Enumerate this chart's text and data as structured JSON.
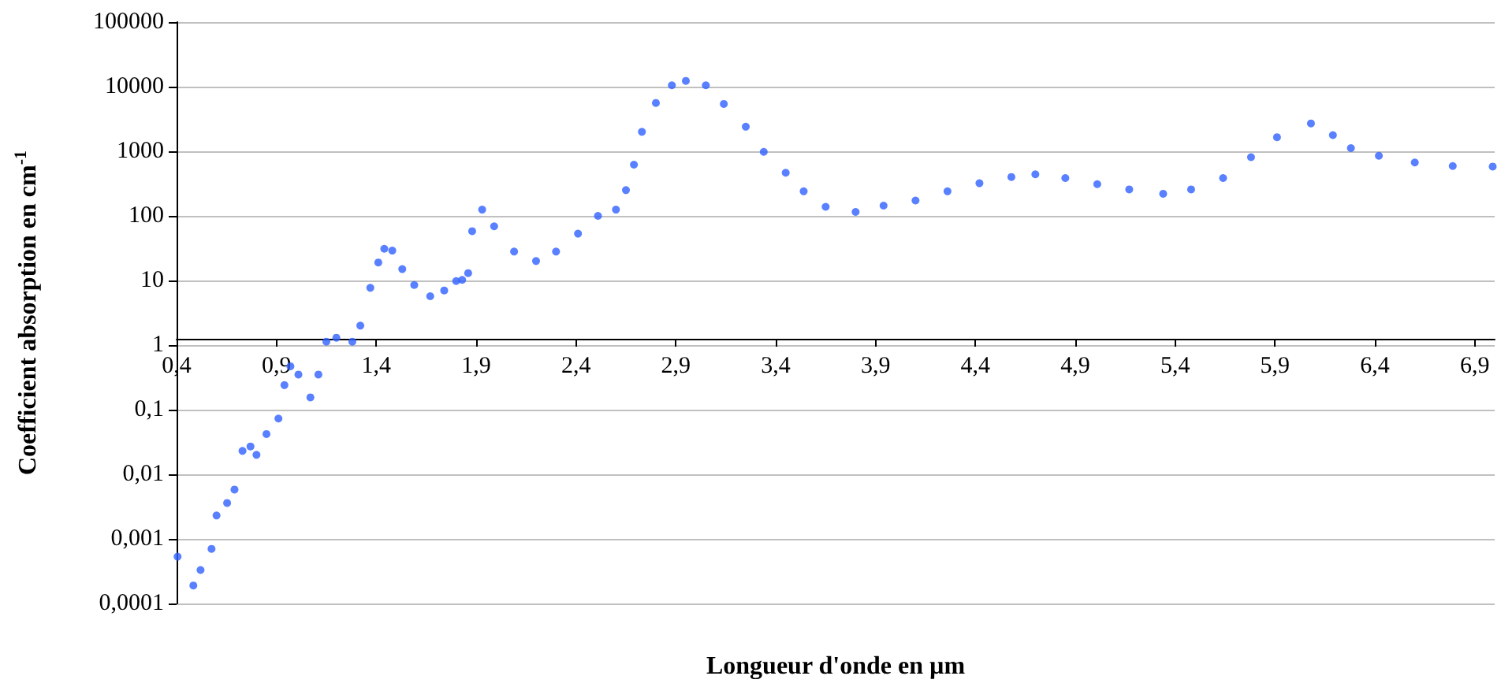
{
  "chart_data": {
    "type": "scatter",
    "xlabel": "Longueur d'onde en µm",
    "ylabel": "Coefficient absorption en cm$^{-1}$",
    "log": "y",
    "grid": "y",
    "marker": "circle",
    "xlim": [
      0.4,
      7.0
    ],
    "ylim": [
      0.0001,
      100000
    ],
    "xticks": [
      {
        "value": 0.4,
        "label": "0,4"
      },
      {
        "value": 0.9,
        "label": "0,9"
      },
      {
        "value": 1.4,
        "label": "1,4"
      },
      {
        "value": 1.9,
        "label": "1,9"
      },
      {
        "value": 2.4,
        "label": "2,4"
      },
      {
        "value": 2.9,
        "label": "2,9"
      },
      {
        "value": 3.4,
        "label": "3,4"
      },
      {
        "value": 3.9,
        "label": "3,9"
      },
      {
        "value": 4.4,
        "label": "4,4"
      },
      {
        "value": 4.9,
        "label": "4,9"
      },
      {
        "value": 5.4,
        "label": "5,4"
      },
      {
        "value": 5.9,
        "label": "5,9"
      },
      {
        "value": 6.4,
        "label": "6,4"
      },
      {
        "value": 6.9,
        "label": "6,9"
      }
    ],
    "yticks": [
      {
        "value": 0.0001,
        "label": "0,0001"
      },
      {
        "value": 0.001,
        "label": "0,001"
      },
      {
        "value": 0.01,
        "label": "0,01"
      },
      {
        "value": 0.1,
        "label": "0,1"
      },
      1,
      10,
      100,
      1000,
      10000,
      100000
    ],
    "series": [
      {
        "color": "#3060ff",
        "x": [
          0.405,
          0.484,
          0.52,
          0.575,
          0.6,
          0.653,
          0.69,
          0.73,
          0.77,
          0.8,
          0.85,
          0.91,
          0.94,
          0.97,
          1.01,
          1.07,
          1.11,
          1.15,
          1.2,
          1.28,
          1.32,
          1.37,
          1.41,
          1.44,
          1.48,
          1.53,
          1.59,
          1.67,
          1.74,
          1.8,
          1.83,
          1.86,
          1.88,
          1.93,
          1.99,
          2.09,
          2.2,
          2.3,
          2.41,
          2.51,
          2.6,
          2.65,
          2.69,
          2.73,
          2.8,
          2.88,
          2.95,
          3.05,
          3.14,
          3.25,
          3.34,
          3.45,
          3.54,
          3.65,
          3.8,
          3.94,
          4.1,
          4.26,
          4.42,
          4.58,
          4.7,
          4.85,
          5.01,
          5.17,
          5.34,
          5.48,
          5.64,
          5.78,
          5.91,
          6.08,
          6.19,
          6.28,
          6.42,
          6.6,
          6.79,
          6.99
        ],
        "values": [
          0.00053,
          0.00019,
          0.00033,
          0.0007,
          0.0023,
          0.0036,
          0.0058,
          0.023,
          0.027,
          0.02,
          0.042,
          0.073,
          0.24,
          0.47,
          0.35,
          0.155,
          0.35,
          1.13,
          1.3,
          1.13,
          2,
          7.7,
          19,
          31,
          29,
          15,
          8.5,
          5.7,
          7,
          9.8,
          10.2,
          13,
          58,
          125,
          69,
          28,
          20,
          28,
          53,
          100,
          125,
          250,
          620,
          2000,
          5600,
          10500,
          12300,
          10500,
          5400,
          2400,
          980,
          465,
          240,
          138,
          115,
          144,
          173,
          240,
          320,
          400,
          440,
          385,
          310,
          257,
          220,
          257,
          385,
          810,
          1650,
          2700,
          1780,
          1120,
          850,
          670,
          590,
          580
        ]
      }
    ]
  }
}
